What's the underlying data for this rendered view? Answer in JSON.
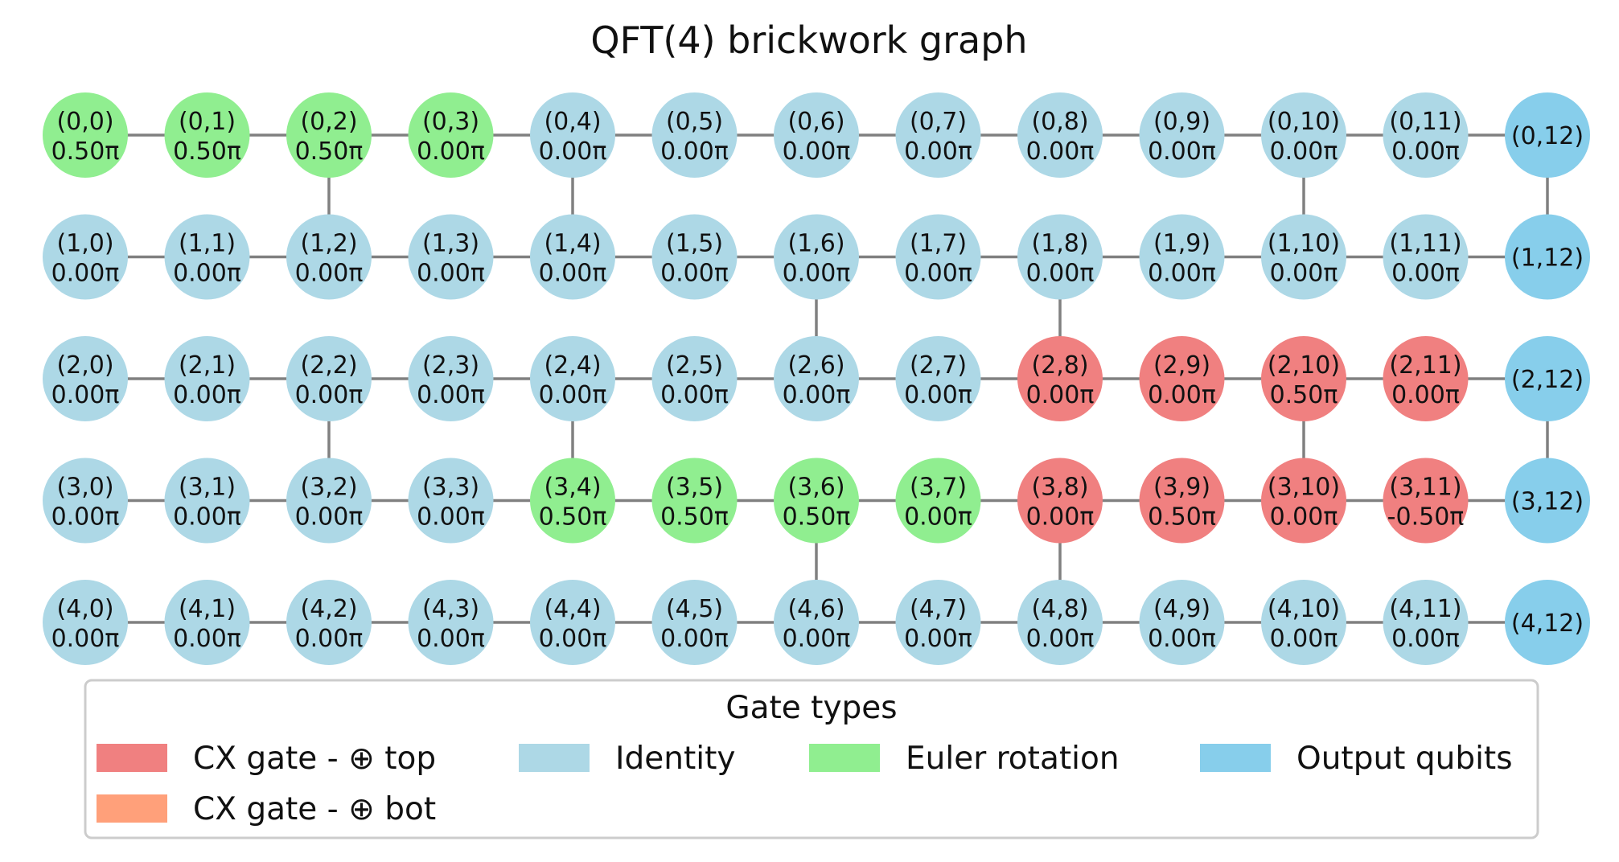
{
  "title": "QFT(4) brickwork graph",
  "colors": {
    "cx_top": "#f08080",
    "cx_bot": "#ffa07a",
    "identity": "#add8e6",
    "euler": "#90ee90",
    "output": "#87ceeb",
    "edge": "#808080"
  },
  "rows": 5,
  "cols": 13,
  "nodes": [
    {
      "id": "(0,0)",
      "angle": "0.50π",
      "type": "euler"
    },
    {
      "id": "(0,1)",
      "angle": "0.50π",
      "type": "euler"
    },
    {
      "id": "(0,2)",
      "angle": "0.50π",
      "type": "euler"
    },
    {
      "id": "(0,3)",
      "angle": "0.00π",
      "type": "euler"
    },
    {
      "id": "(0,4)",
      "angle": "0.00π",
      "type": "identity"
    },
    {
      "id": "(0,5)",
      "angle": "0.00π",
      "type": "identity"
    },
    {
      "id": "(0,6)",
      "angle": "0.00π",
      "type": "identity"
    },
    {
      "id": "(0,7)",
      "angle": "0.00π",
      "type": "identity"
    },
    {
      "id": "(0,8)",
      "angle": "0.00π",
      "type": "identity"
    },
    {
      "id": "(0,9)",
      "angle": "0.00π",
      "type": "identity"
    },
    {
      "id": "(0,10)",
      "angle": "0.00π",
      "type": "identity"
    },
    {
      "id": "(0,11)",
      "angle": "0.00π",
      "type": "identity"
    },
    {
      "id": "(0,12)",
      "angle": "",
      "type": "output"
    },
    {
      "id": "(1,0)",
      "angle": "0.00π",
      "type": "identity"
    },
    {
      "id": "(1,1)",
      "angle": "0.00π",
      "type": "identity"
    },
    {
      "id": "(1,2)",
      "angle": "0.00π",
      "type": "identity"
    },
    {
      "id": "(1,3)",
      "angle": "0.00π",
      "type": "identity"
    },
    {
      "id": "(1,4)",
      "angle": "0.00π",
      "type": "identity"
    },
    {
      "id": "(1,5)",
      "angle": "0.00π",
      "type": "identity"
    },
    {
      "id": "(1,6)",
      "angle": "0.00π",
      "type": "identity"
    },
    {
      "id": "(1,7)",
      "angle": "0.00π",
      "type": "identity"
    },
    {
      "id": "(1,8)",
      "angle": "0.00π",
      "type": "identity"
    },
    {
      "id": "(1,9)",
      "angle": "0.00π",
      "type": "identity"
    },
    {
      "id": "(1,10)",
      "angle": "0.00π",
      "type": "identity"
    },
    {
      "id": "(1,11)",
      "angle": "0.00π",
      "type": "identity"
    },
    {
      "id": "(1,12)",
      "angle": "",
      "type": "output"
    },
    {
      "id": "(2,0)",
      "angle": "0.00π",
      "type": "identity"
    },
    {
      "id": "(2,1)",
      "angle": "0.00π",
      "type": "identity"
    },
    {
      "id": "(2,2)",
      "angle": "0.00π",
      "type": "identity"
    },
    {
      "id": "(2,3)",
      "angle": "0.00π",
      "type": "identity"
    },
    {
      "id": "(2,4)",
      "angle": "0.00π",
      "type": "identity"
    },
    {
      "id": "(2,5)",
      "angle": "0.00π",
      "type": "identity"
    },
    {
      "id": "(2,6)",
      "angle": "0.00π",
      "type": "identity"
    },
    {
      "id": "(2,7)",
      "angle": "0.00π",
      "type": "identity"
    },
    {
      "id": "(2,8)",
      "angle": "0.00π",
      "type": "cx_top"
    },
    {
      "id": "(2,9)",
      "angle": "0.00π",
      "type": "cx_top"
    },
    {
      "id": "(2,10)",
      "angle": "0.50π",
      "type": "cx_top"
    },
    {
      "id": "(2,11)",
      "angle": "0.00π",
      "type": "cx_top"
    },
    {
      "id": "(2,12)",
      "angle": "",
      "type": "output"
    },
    {
      "id": "(3,0)",
      "angle": "0.00π",
      "type": "identity"
    },
    {
      "id": "(3,1)",
      "angle": "0.00π",
      "type": "identity"
    },
    {
      "id": "(3,2)",
      "angle": "0.00π",
      "type": "identity"
    },
    {
      "id": "(3,3)",
      "angle": "0.00π",
      "type": "identity"
    },
    {
      "id": "(3,4)",
      "angle": "0.50π",
      "type": "euler"
    },
    {
      "id": "(3,5)",
      "angle": "0.50π",
      "type": "euler"
    },
    {
      "id": "(3,6)",
      "angle": "0.50π",
      "type": "euler"
    },
    {
      "id": "(3,7)",
      "angle": "0.00π",
      "type": "euler"
    },
    {
      "id": "(3,8)",
      "angle": "0.00π",
      "type": "cx_top"
    },
    {
      "id": "(3,9)",
      "angle": "0.50π",
      "type": "cx_top"
    },
    {
      "id": "(3,10)",
      "angle": "0.00π",
      "type": "cx_top"
    },
    {
      "id": "(3,11)",
      "angle": "-0.50π",
      "type": "cx_top"
    },
    {
      "id": "(3,12)",
      "angle": "",
      "type": "output"
    },
    {
      "id": "(4,0)",
      "angle": "0.00π",
      "type": "identity"
    },
    {
      "id": "(4,1)",
      "angle": "0.00π",
      "type": "identity"
    },
    {
      "id": "(4,2)",
      "angle": "0.00π",
      "type": "identity"
    },
    {
      "id": "(4,3)",
      "angle": "0.00π",
      "type": "identity"
    },
    {
      "id": "(4,4)",
      "angle": "0.00π",
      "type": "identity"
    },
    {
      "id": "(4,5)",
      "angle": "0.00π",
      "type": "identity"
    },
    {
      "id": "(4,6)",
      "angle": "0.00π",
      "type": "identity"
    },
    {
      "id": "(4,7)",
      "angle": "0.00π",
      "type": "identity"
    },
    {
      "id": "(4,8)",
      "angle": "0.00π",
      "type": "identity"
    },
    {
      "id": "(4,9)",
      "angle": "0.00π",
      "type": "identity"
    },
    {
      "id": "(4,10)",
      "angle": "0.00π",
      "type": "identity"
    },
    {
      "id": "(4,11)",
      "angle": "0.00π",
      "type": "identity"
    },
    {
      "id": "(4,12)",
      "angle": "",
      "type": "output"
    }
  ],
  "vertical_edges": [
    [
      0,
      2
    ],
    [
      2,
      2
    ],
    [
      0,
      4
    ],
    [
      2,
      4
    ],
    [
      1,
      6
    ],
    [
      3,
      6
    ],
    [
      1,
      8
    ],
    [
      3,
      8
    ],
    [
      0,
      10
    ],
    [
      2,
      10
    ],
    [
      0,
      12
    ],
    [
      2,
      12
    ]
  ],
  "legend": {
    "title": "Gate types",
    "items": [
      {
        "label": "CX gate - ⊕ top",
        "color_key": "cx_top"
      },
      {
        "label": "Identity",
        "color_key": "identity"
      },
      {
        "label": "Euler rotation",
        "color_key": "euler"
      },
      {
        "label": "Output qubits",
        "color_key": "output"
      },
      {
        "label": "CX gate - ⊕ bot",
        "color_key": "cx_bot"
      }
    ]
  }
}
